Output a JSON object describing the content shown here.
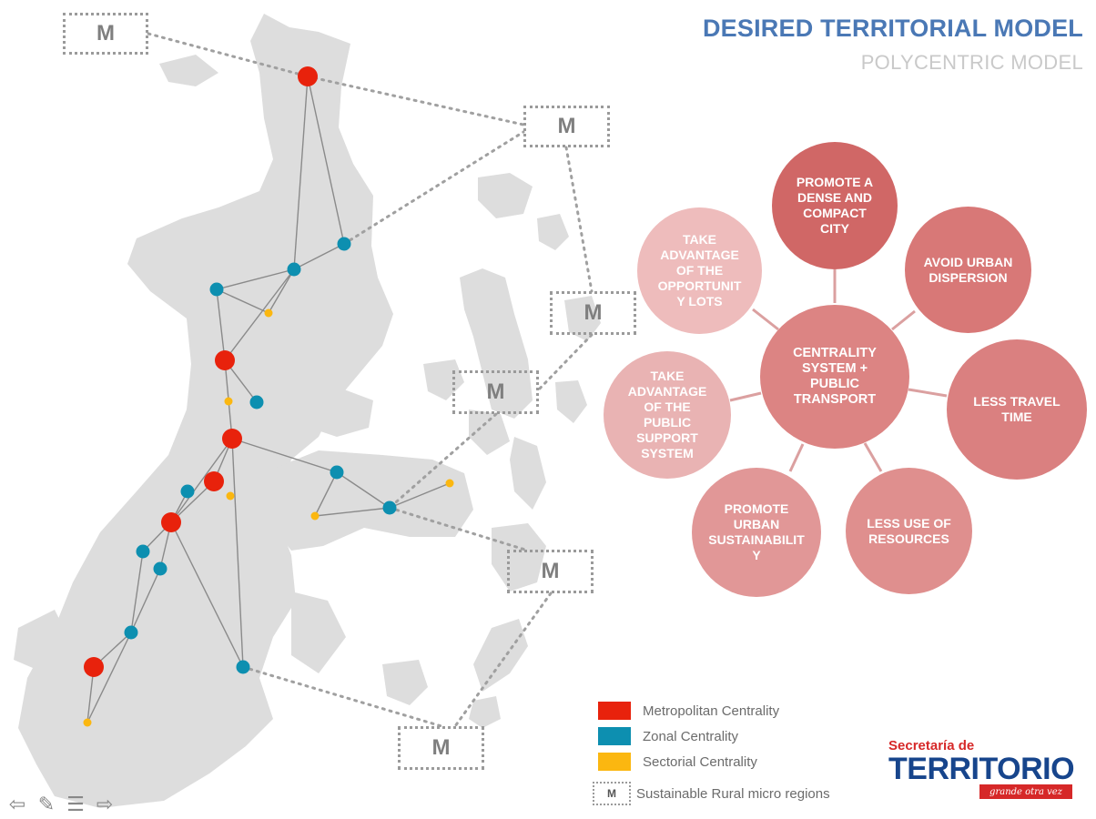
{
  "header": {
    "title": "DESIRED TERRITORIAL MODEL",
    "subtitle": "POLYCENTRIC MODEL"
  },
  "micro_region_label": "M",
  "colors": {
    "metropolitan": "#e8220c",
    "zonal": "#0d8fb0",
    "sectorial": "#fbb710",
    "land": "#dddddd",
    "title": "#4a78b5"
  },
  "diagram": {
    "center": "CENTRALITY SYSTEM + PUBLIC TRANSPORT",
    "petals": [
      "PROMOTE A DENSE AND COMPACT CITY",
      "AVOID URBAN DISPERSION",
      "LESS TRAVEL TIME",
      "LESS USE OF RESOURCES",
      "PROMOTE URBAN SUSTAINABILIT Y",
      "TAKE ADVANTAGE OF THE PUBLIC SUPPORT SYSTEM",
      "TAKE ADVANTAGE OF THE OPPORTUNIT Y LOTS"
    ]
  },
  "legend": {
    "metropolitan": "Metropolitan Centrality",
    "zonal": "Zonal Centrality",
    "sectorial": "Sectorial Centrality",
    "micro": "Sustainable Rural micro regions",
    "micro_symbol": "M"
  },
  "logo": {
    "top": "Secretaría de",
    "main": "TERRITORIO",
    "tagline": "grande otra vez"
  },
  "nav": {
    "back": "⇦",
    "pen": "✎",
    "menu": "☰",
    "forward": "⇨"
  }
}
